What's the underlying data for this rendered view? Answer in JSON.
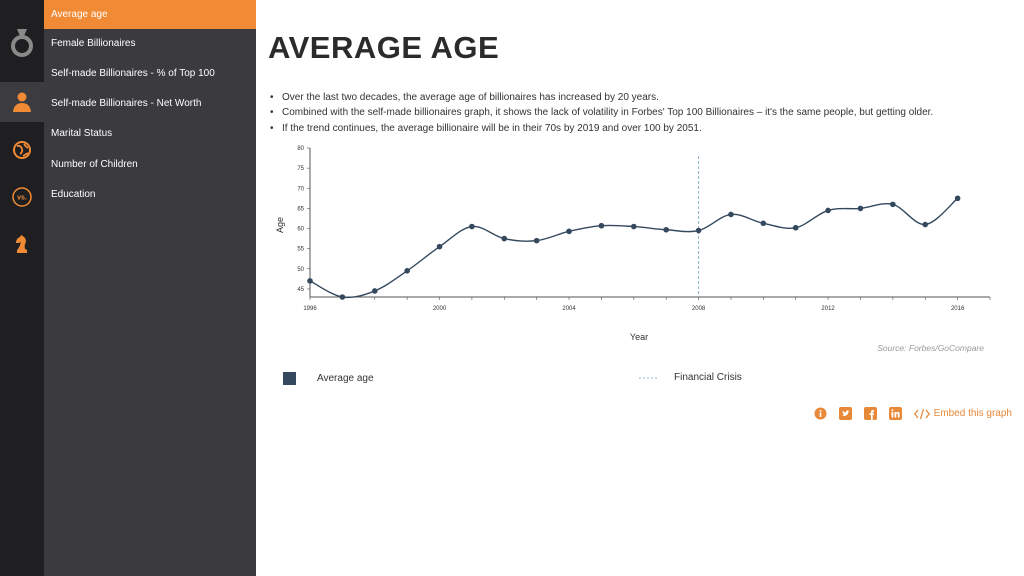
{
  "sidebar": {
    "items": [
      {
        "label": "Average age",
        "active": true
      },
      {
        "label": "Female Billionaires",
        "active": false
      },
      {
        "label": "Self-made Billionaires - % of Top 100",
        "active": false
      },
      {
        "label": "Self-made Billionaires - Net Worth",
        "active": false
      },
      {
        "label": "Marital Status",
        "active": false
      },
      {
        "label": "Number of Children",
        "active": false
      },
      {
        "label": "Education",
        "active": false
      }
    ],
    "icons": [
      "ring-icon",
      "person-icon",
      "globe-icon",
      "vs-icon",
      "chess-knight-icon"
    ],
    "vs_label": "vs."
  },
  "page": {
    "title": "AVERAGE AGE",
    "bullets": [
      "Over the last two decades, the average age of billionaires has increased by 20 years.",
      "Combined with the self-made billionaires graph, it shows the lack of volatility in Forbes' Top 100 Billionaires – it's the same people, but getting older.",
      "If the trend continues, the average billionaire will be in their 70s by 2019 and over 100 by 2051."
    ],
    "source": "Source: Forbes/GoCompare",
    "legend": {
      "series_label": "Average age",
      "marker_label": "Financial Crisis"
    },
    "embed_label": "Embed this graph"
  },
  "colors": {
    "accent": "#f08a35",
    "sidebar_dark": "#1f1f22",
    "sidebar": "#3a3a3f",
    "series": "#34495e",
    "crisis_line": "#8fb3c7"
  },
  "chart_data": {
    "type": "line",
    "xlabel": "Year",
    "ylabel": "Age",
    "xlim": [
      1996,
      2017
    ],
    "ylim": [
      43,
      80
    ],
    "xticks": [
      1996,
      2000,
      2004,
      2008,
      2012,
      2016
    ],
    "yticks": [
      45,
      50,
      55,
      60,
      65,
      70,
      75,
      80
    ],
    "series": [
      {
        "name": "Average age",
        "x": [
          1996,
          1997,
          1998,
          1999,
          2000,
          2001,
          2002,
          2003,
          2004,
          2005,
          2006,
          2007,
          2008,
          2009,
          2010,
          2011,
          2012,
          2013,
          2014,
          2015,
          2016
        ],
        "values": [
          47,
          43,
          44.5,
          49.5,
          55.5,
          60.5,
          57.5,
          57,
          59.3,
          60.7,
          60.5,
          59.7,
          59.5,
          63.5,
          61.3,
          60.2,
          64.5,
          65,
          66,
          61,
          67.5
        ]
      }
    ],
    "annotations": [
      {
        "x": 2008,
        "label": "Financial Crisis",
        "style": "dashed"
      }
    ],
    "grid": false,
    "legend_position": "bottom-left"
  }
}
